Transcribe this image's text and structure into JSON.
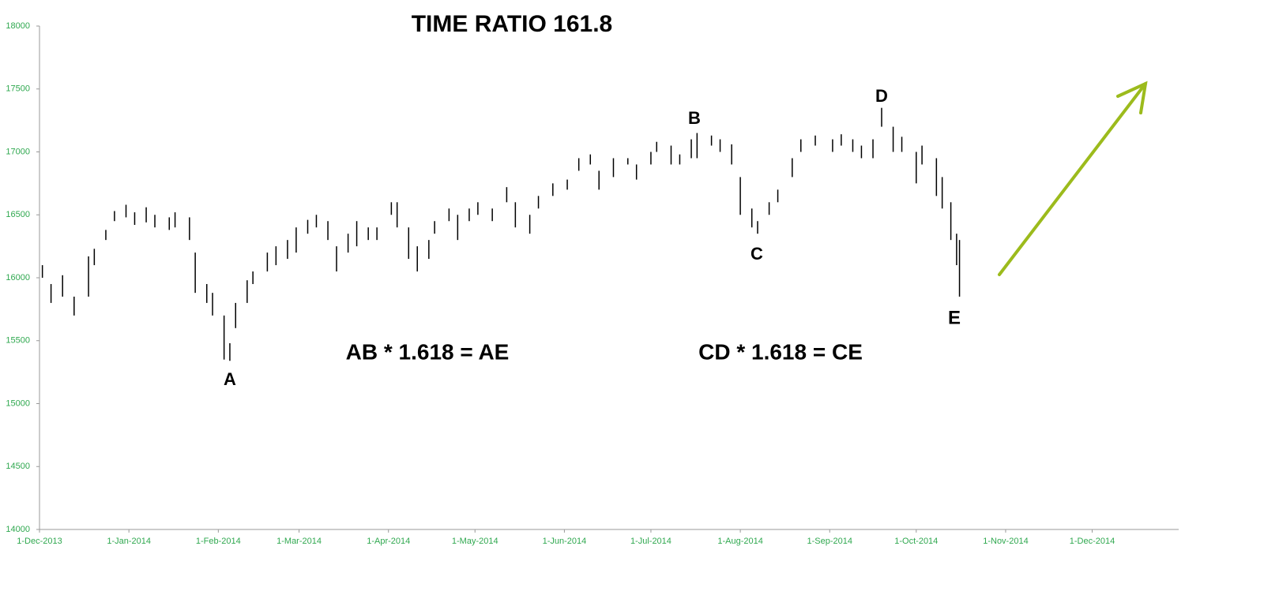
{
  "chart_data": {
    "type": "stock",
    "title": "TIME RATIO  161.8",
    "annotations": [
      "A",
      "B",
      "C",
      "D",
      "E",
      "AB * 1.618 = AE",
      "CD * 1.618 = CE"
    ],
    "color": "#000000",
    "x": [
      "2013-12-02",
      "2013-12-05",
      "2013-12-09",
      "2013-12-13",
      "2013-12-18",
      "2013-12-20",
      "2013-12-24",
      "2013-12-27",
      "2013-12-31",
      "2014-01-03",
      "2014-01-07",
      "2014-01-10",
      "2014-01-15",
      "2014-01-17",
      "2014-01-22",
      "2014-01-24",
      "2014-01-28",
      "2014-01-30",
      "2014-02-03",
      "2014-02-05",
      "2014-02-07",
      "2014-02-11",
      "2014-02-13",
      "2014-02-18",
      "2014-02-21",
      "2014-02-25",
      "2014-02-28",
      "2014-03-04",
      "2014-03-07",
      "2014-03-11",
      "2014-03-14",
      "2014-03-18",
      "2014-03-21",
      "2014-03-25",
      "2014-03-28",
      "2014-04-02",
      "2014-04-04",
      "2014-04-08",
      "2014-04-11",
      "2014-04-15",
      "2014-04-17",
      "2014-04-22",
      "2014-04-25",
      "2014-04-29",
      "2014-05-02",
      "2014-05-07",
      "2014-05-12",
      "2014-05-15",
      "2014-05-20",
      "2014-05-23",
      "2014-05-28",
      "2014-06-02",
      "2014-06-06",
      "2014-06-10",
      "2014-06-13",
      "2014-06-18",
      "2014-06-23",
      "2014-06-26",
      "2014-07-01",
      "2014-07-03",
      "2014-07-08",
      "2014-07-11",
      "2014-07-15",
      "2014-07-17",
      "2014-07-22",
      "2014-07-25",
      "2014-07-29",
      "2014-08-01",
      "2014-08-05",
      "2014-08-07",
      "2014-08-11",
      "2014-08-14",
      "2014-08-19",
      "2014-08-22",
      "2014-08-27",
      "2014-09-02",
      "2014-09-05",
      "2014-09-09",
      "2014-09-12",
      "2014-09-16",
      "2014-09-19",
      "2014-09-23",
      "2014-09-26",
      "2014-10-01",
      "2014-10-03",
      "2014-10-08",
      "2014-10-10",
      "2014-10-13",
      "2014-10-15",
      "2014-10-16"
    ],
    "high": [
      16100,
      15950,
      16020,
      15850,
      16170,
      16230,
      16380,
      16530,
      16580,
      16520,
      16560,
      16500,
      16480,
      16520,
      16480,
      16200,
      15950,
      15880,
      15700,
      15480,
      15800,
      15980,
      16050,
      16200,
      16250,
      16300,
      16400,
      16460,
      16500,
      16450,
      16250,
      16350,
      16450,
      16400,
      16400,
      16600,
      16600,
      16400,
      16250,
      16300,
      16450,
      16550,
      16500,
      16550,
      16600,
      16550,
      16720,
      16600,
      16500,
      16650,
      16750,
      16780,
      16950,
      16980,
      16850,
      16950,
      16950,
      16900,
      17000,
      17080,
      17050,
      16980,
      17100,
      17150,
      17130,
      17100,
      17060,
      16800,
      16550,
      16450,
      16600,
      16700,
      16950,
      17100,
      17130,
      17100,
      17140,
      17100,
      17050,
      17100,
      17350,
      17200,
      17120,
      17000,
      17050,
      16950,
      16800,
      16600,
      16350,
      16300
    ],
    "low": [
      16000,
      15800,
      15850,
      15700,
      15850,
      16100,
      16300,
      16450,
      16480,
      16420,
      16440,
      16400,
      16380,
      16400,
      16300,
      15880,
      15800,
      15700,
      15350,
      15340,
      15600,
      15800,
      15950,
      16050,
      16100,
      16150,
      16200,
      16350,
      16400,
      16300,
      16050,
      16200,
      16250,
      16300,
      16300,
      16500,
      16400,
      16150,
      16050,
      16150,
      16350,
      16450,
      16300,
      16450,
      16500,
      16450,
      16600,
      16400,
      16350,
      16550,
      16650,
      16700,
      16850,
      16900,
      16700,
      16800,
      16900,
      16780,
      16900,
      17000,
      16900,
      16900,
      16950,
      16950,
      17050,
      17000,
      16900,
      16500,
      16400,
      16350,
      16500,
      16600,
      16800,
      17000,
      17050,
      17000,
      17050,
      17000,
      16950,
      16950,
      17200,
      17000,
      17000,
      16750,
      16900,
      16650,
      16550,
      16300,
      16100,
      15850
    ],
    "xlim": [
      "2013-12-01",
      "2014-12-31"
    ],
    "xticks": [
      {
        "value": "2013-12-01",
        "label": "1-Dec-2013"
      },
      {
        "value": "2014-01-01",
        "label": "1-Jan-2014"
      },
      {
        "value": "2014-02-01",
        "label": "1-Feb-2014"
      },
      {
        "value": "2014-03-01",
        "label": "1-Mar-2014"
      },
      {
        "value": "2014-04-01",
        "label": "1-Apr-2014"
      },
      {
        "value": "2014-05-01",
        "label": "1-May-2014"
      },
      {
        "value": "2014-06-01",
        "label": "1-Jun-2014"
      },
      {
        "value": "2014-07-01",
        "label": "1-Jul-2014"
      },
      {
        "value": "2014-08-01",
        "label": "1-Aug-2014"
      },
      {
        "value": "2014-09-01",
        "label": "1-Sep-2014"
      },
      {
        "value": "2014-10-01",
        "label": "1-Oct-2014"
      },
      {
        "value": "2014-11-01",
        "label": "1-Nov-2014"
      },
      {
        "value": "2014-12-01",
        "label": "1-Dec-2014"
      }
    ],
    "ylim": [
      14000,
      18000
    ],
    "yticks": [
      14000,
      14500,
      15000,
      15500,
      16000,
      16500,
      17000,
      17500,
      18000
    ]
  }
}
